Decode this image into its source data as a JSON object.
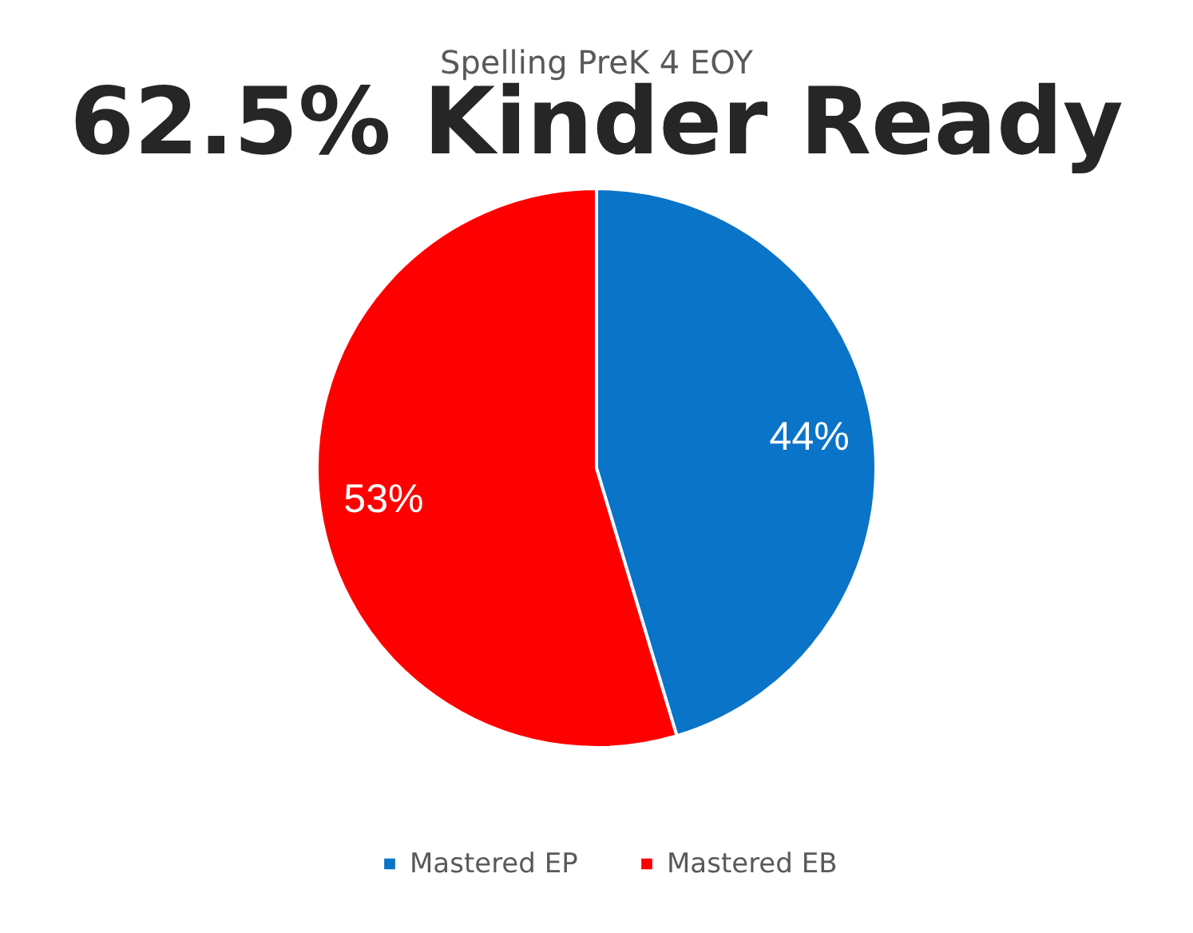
{
  "chart_data": {
    "type": "pie",
    "title": "Spelling PreK 4 EOY",
    "subtitle": "62.5% Kinder Ready",
    "categories": [
      "Mastered EP",
      "Mastered EB"
    ],
    "values": [
      44,
      53
    ],
    "colors": [
      "#0a74c8",
      "#fe0000"
    ],
    "value_labels": [
      "44%",
      "53%"
    ],
    "legend": "bottom"
  }
}
